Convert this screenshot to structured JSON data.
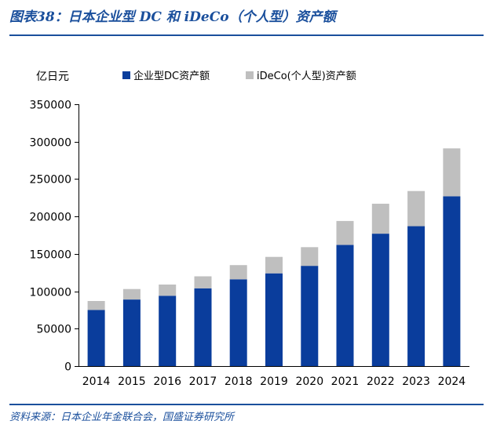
{
  "figure": {
    "title": "图表38：日本企业型 DC 和 iDeCo（个人型）资产额",
    "source": "资料来源：日本企业年金联合会，国盛证券研究所"
  },
  "colors": {
    "brand": "#1a4f9c",
    "corporate_dc": "#0a3d9c",
    "ideco": "#bfbfbf"
  },
  "chart_data": {
    "type": "bar",
    "stacked": true,
    "unit_label": "亿日元",
    "categories": [
      "2014",
      "2015",
      "2016",
      "2017",
      "2018",
      "2019",
      "2020",
      "2021",
      "2022",
      "2023",
      "2024"
    ],
    "series": [
      {
        "name": "企业型DC资产额",
        "color": "#0a3d9c",
        "values": [
          75000,
          89000,
          94000,
          104000,
          116000,
          124000,
          134000,
          162000,
          177000,
          187000,
          227000
        ]
      },
      {
        "name": "iDeCo(个人型)资产额",
        "color": "#bfbfbf",
        "values": [
          12000,
          14000,
          15000,
          16000,
          19000,
          22000,
          25000,
          32000,
          40000,
          47000,
          64000
        ]
      }
    ],
    "ylim": [
      0,
      350000
    ],
    "yticks": [
      0,
      50000,
      100000,
      150000,
      200000,
      250000,
      300000,
      350000
    ],
    "grid": false,
    "legend_position": "top"
  }
}
